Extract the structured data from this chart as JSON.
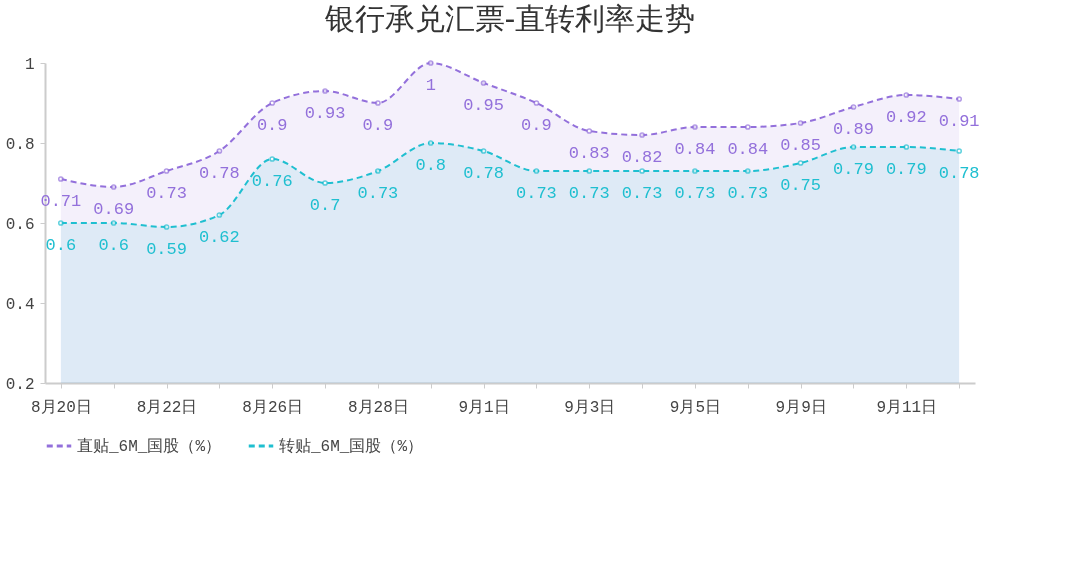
{
  "chart_data": {
    "type": "area",
    "title": "银行承兑汇票-直转利率走势",
    "categories": [
      "8月20日",
      null,
      "8月22日",
      null,
      "8月26日",
      null,
      "8月28日",
      null,
      "9月1日",
      null,
      "9月3日",
      null,
      "9月5日",
      null,
      "9月9日",
      null,
      "9月11日",
      null
    ],
    "series": [
      {
        "name": "直贴_6M_国股（%）",
        "color": "#9370db",
        "values": [
          0.71,
          0.69,
          0.73,
          0.78,
          0.9,
          0.93,
          0.9,
          1,
          0.95,
          0.9,
          0.83,
          0.82,
          0.84,
          0.84,
          0.85,
          0.89,
          0.92,
          0.91
        ]
      },
      {
        "name": "转贴_6M_国股（%）",
        "color": "#1fbfd0",
        "values": [
          0.6,
          0.6,
          0.59,
          0.62,
          0.76,
          0.7,
          0.73,
          0.8,
          0.78,
          0.73,
          0.73,
          0.73,
          0.73,
          0.73,
          0.75,
          0.79,
          0.79,
          0.78
        ]
      }
    ],
    "ylim": [
      0.2,
      1
    ],
    "yticks": [
      0.2,
      0.4,
      0.6,
      0.8,
      1
    ],
    "grid": false,
    "legend": "bottom",
    "marker": "circle",
    "line_style": "dashed",
    "data_labels": true
  }
}
